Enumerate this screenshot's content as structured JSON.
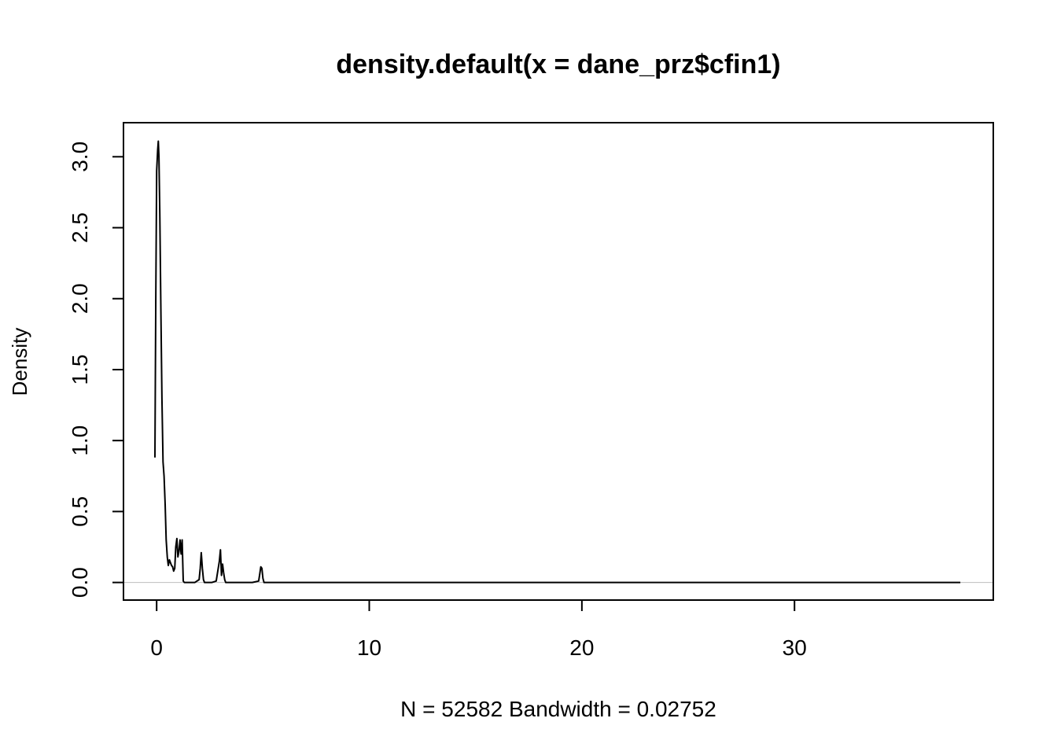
{
  "chart_data": {
    "type": "line",
    "title": "density.default(x = dane_prz$cfin1)",
    "xlabel": "N = 52582   Bandwidth = 0.02752",
    "ylabel": "Density",
    "xlim": [
      -1.56,
      39.35
    ],
    "ylim": [
      -0.124,
      3.24
    ],
    "x_ticks": [
      0,
      10,
      20,
      30
    ],
    "x_tick_labels": [
      "0",
      "10",
      "20",
      "30"
    ],
    "y_ticks": [
      0.0,
      0.5,
      1.0,
      1.5,
      2.0,
      2.5,
      3.0
    ],
    "y_tick_labels": [
      "0.0",
      "0.5",
      "1.0",
      "1.5",
      "2.0",
      "2.5",
      "3.0"
    ],
    "grid": false,
    "legend": "none",
    "zero_line_color": "#bebebe",
    "line_color": "#000000",
    "series": [
      {
        "x": [
          -0.08,
          -0.04,
          0.0,
          0.05,
          0.08,
          0.11,
          0.15,
          0.2,
          0.25,
          0.3,
          0.35,
          0.4,
          0.45,
          0.5,
          0.55,
          0.6,
          0.65,
          0.7,
          0.75,
          0.8,
          0.85,
          0.9,
          0.95,
          1.0,
          1.05,
          1.1,
          1.15,
          1.2,
          1.25,
          1.3,
          1.35,
          1.4,
          1.5,
          1.6,
          1.8,
          2.0,
          2.05,
          2.1,
          2.15,
          2.2,
          2.25,
          2.3,
          2.4,
          2.6,
          2.8,
          2.95,
          3.0,
          3.05,
          3.1,
          3.15,
          3.2,
          3.25,
          3.3,
          3.4,
          3.6,
          4.0,
          4.5,
          4.8,
          4.85,
          4.9,
          4.95,
          5.0,
          5.05,
          5.2,
          6.0,
          10.0,
          20.0,
          30.0,
          37.8
        ],
        "y": [
          0.88,
          2.0,
          2.9,
          3.05,
          3.11,
          3.0,
          2.6,
          1.9,
          1.3,
          0.85,
          0.75,
          0.55,
          0.3,
          0.18,
          0.12,
          0.16,
          0.14,
          0.12,
          0.11,
          0.08,
          0.1,
          0.25,
          0.31,
          0.18,
          0.22,
          0.3,
          0.2,
          0.3,
          0.01,
          0.0,
          0.0,
          0.0,
          0.0,
          0.0,
          0.0,
          0.02,
          0.1,
          0.21,
          0.1,
          0.02,
          0.0,
          0.0,
          0.0,
          0.0,
          0.01,
          0.15,
          0.23,
          0.05,
          0.13,
          0.07,
          0.02,
          0.0,
          0.0,
          0.0,
          0.0,
          0.0,
          0.0,
          0.01,
          0.06,
          0.11,
          0.1,
          0.03,
          0.0,
          0.0,
          0.0,
          0.0,
          0.0,
          0.0,
          0.0
        ]
      }
    ]
  }
}
